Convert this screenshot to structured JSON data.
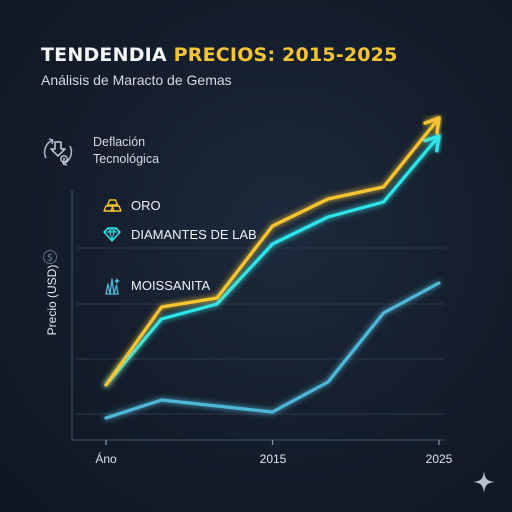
{
  "header": {
    "title_part1": "TENDENDIA ",
    "title_part2": "PRECIOS: 2015-2025",
    "subtitle": "Análisis de Maracto de Gemas"
  },
  "badge": {
    "icon": "gear-down-arrow-icon",
    "line1": "Deflación",
    "line2": "Tecnológica"
  },
  "colors": {
    "oro": "#f7c531",
    "diamantes": "#2ee6ea",
    "moissanita": "#4fb8d8",
    "grid": "#2a3749",
    "axis": "#3a4a60"
  },
  "chart_data": {
    "type": "line",
    "ylabel": "Precio (USD)",
    "xlabel": "",
    "x_ticks": [
      "Áno",
      "2015",
      "2025"
    ],
    "y_ticks_labeled": false,
    "x": [
      0,
      1,
      2,
      3,
      4,
      5,
      6
    ],
    "ylim": [
      0,
      100
    ],
    "grid": "horizontal",
    "legend_position": "top-left",
    "series": [
      {
        "name": "ORO",
        "icon": "gold-bars-icon",
        "values": [
          11,
          37,
          40,
          64,
          73,
          77,
          100
        ],
        "arrow": true
      },
      {
        "name": "DIAMANTES DE LAB",
        "icon": "diamond-icon",
        "values": [
          11,
          33,
          38,
          58,
          67,
          72,
          94
        ],
        "arrow": true
      },
      {
        "name": "MOISSANITA",
        "icon": "crystal-icon",
        "values": [
          0,
          6,
          4,
          2,
          12,
          35,
          45
        ],
        "arrow": false
      }
    ]
  }
}
